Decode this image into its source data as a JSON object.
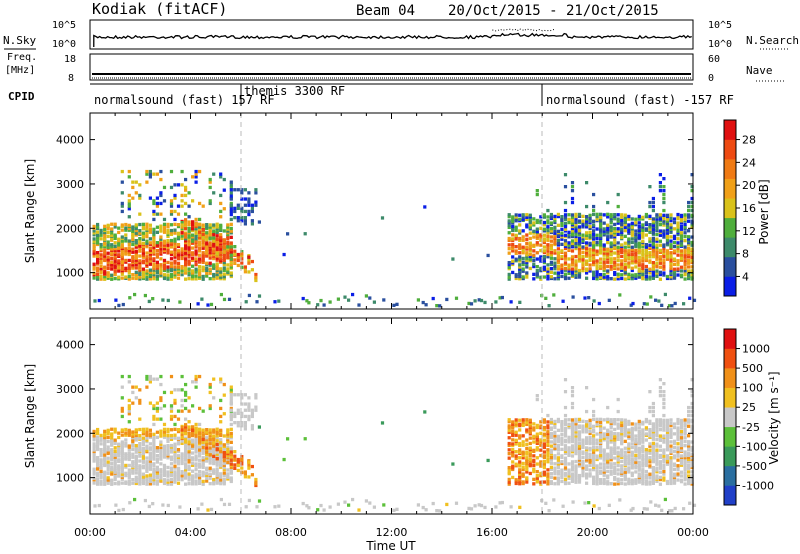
{
  "header": {
    "radar": "Kodiak (fitACF)",
    "beam": "Beam 04",
    "date_range": "20/Oct/2015 - 21/Oct/2015"
  },
  "top_panels": {
    "nsky_label": "N.Sky",
    "nsearch_label": "N.Search",
    "noise_ticks": [
      "10^5",
      "10^0"
    ],
    "freq_label_1": "Freq.",
    "freq_label_2": "[MHz]",
    "freq_ticks": [
      "18",
      "8"
    ],
    "nave_label": "Nave",
    "nave_ticks": [
      "60",
      "0"
    ],
    "cpid_label": "CPID",
    "cpid_segments": [
      {
        "label": "normalsound (fast) 157 RF",
        "start_h": 0,
        "end_h": 6
      },
      {
        "label": "themis 3300 RF",
        "start_h": 6,
        "end_h": 18
      },
      {
        "label": "normalsound (fast) -157 RF",
        "start_h": 18,
        "end_h": 24
      }
    ]
  },
  "chart_data": [
    {
      "type": "heatmap",
      "name": "power",
      "ylabel": "Slant Range [km]",
      "xlabel": "Time UT",
      "xlim": [
        0,
        24
      ],
      "ylim": [
        180,
        4600
      ],
      "yticks": [
        "1000",
        "2000",
        "3000",
        "4000"
      ],
      "xticks": [
        "00:00",
        "04:00",
        "08:00",
        "12:00",
        "16:00",
        "20:00",
        "00:00"
      ],
      "colorbar": {
        "label": "Power [dB]",
        "tick_labels": [
          "4",
          "8",
          "12",
          "16",
          "20",
          "24",
          "28"
        ],
        "colors": [
          "#0a1ee6",
          "#2a4f9e",
          "#3d8a6a",
          "#4fae3c",
          "#d9c21a",
          "#f0a018",
          "#ef7a14",
          "#ee4a12",
          "#e01010"
        ]
      }
    },
    {
      "type": "heatmap",
      "name": "velocity",
      "ylabel": "Slant Range [km]",
      "xlabel": "Time UT",
      "xlim": [
        0,
        24
      ],
      "ylim": [
        180,
        4600
      ],
      "yticks": [
        "1000",
        "2000",
        "3000",
        "4000"
      ],
      "xticks": [
        "00:00",
        "04:00",
        "08:00",
        "12:00",
        "16:00",
        "20:00",
        "00:00"
      ],
      "colorbar": {
        "label": "Velocity [m s⁻¹]",
        "tick_labels": [
          "1000",
          "500",
          "100",
          "25",
          "-25",
          "-100",
          "-500",
          "-1000"
        ],
        "colors": [
          "#2040c8",
          "#2a6ea0",
          "#3a9a5a",
          "#5cc03a",
          "#c8c8c8",
          "#f0c020",
          "#f09018",
          "#f05010",
          "#e01010"
        ]
      }
    }
  ]
}
